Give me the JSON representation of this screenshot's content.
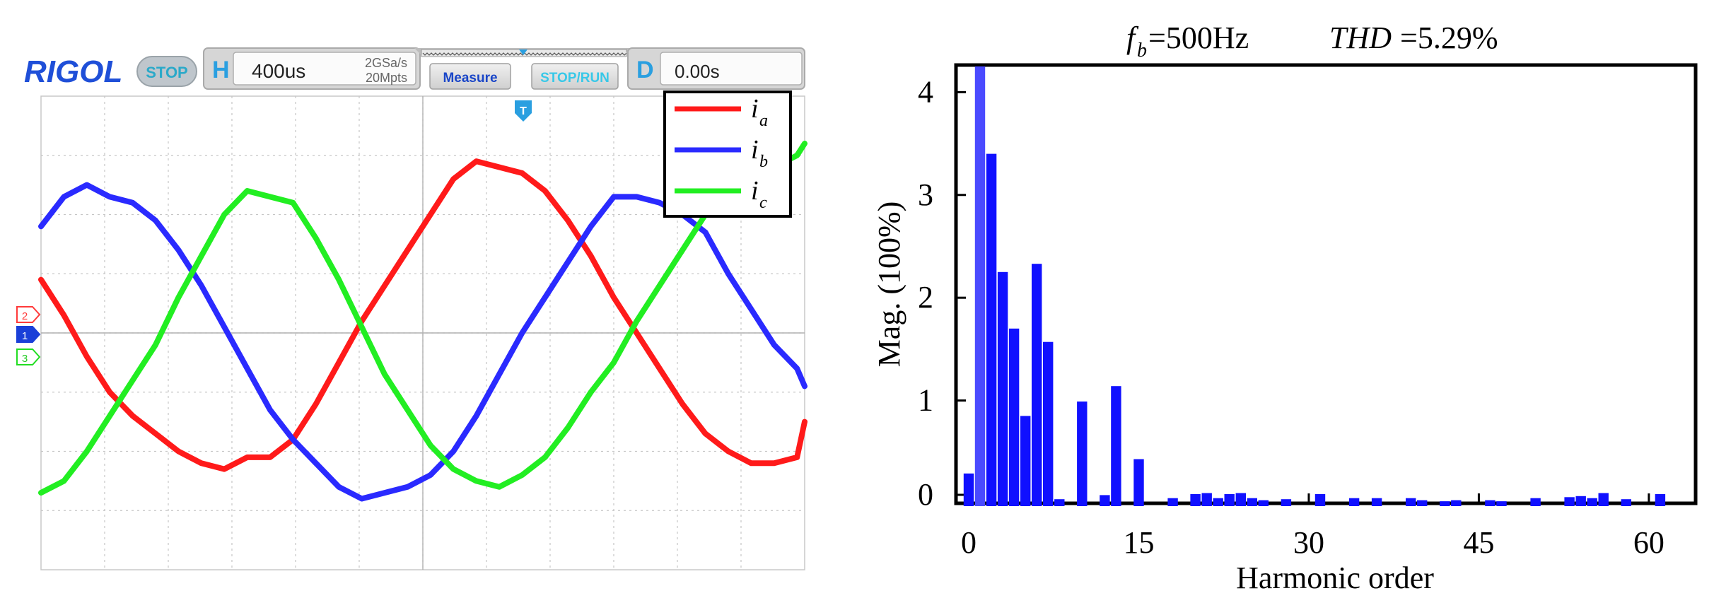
{
  "colors": {
    "ia": "#ff1a1a",
    "ib": "#2a2aff",
    "ic": "#22ee22",
    "bar": "#1010ff",
    "bar_fundamental": "#4a4aff",
    "rigol_blue": "#1f4fd8",
    "panel": "#e1e1e1",
    "accent_cyan": "#38c8e8"
  },
  "scope": {
    "brand": "RIGOL",
    "status": "STOP",
    "h_label": "H",
    "timebase": "400us",
    "sample_rate": "2GSa/s",
    "memory_depth": "20Mpts",
    "measure_button": "Measure",
    "stoprun_button": "STOP/RUN",
    "d_label": "D",
    "delay": "0.00s",
    "trigger_marker": "T",
    "channel_markers": [
      "2",
      "1",
      "3"
    ],
    "legend": [
      {
        "symbol": "i",
        "sub": "a",
        "color_key": "ia"
      },
      {
        "symbol": "i",
        "sub": "b",
        "color_key": "ib"
      },
      {
        "symbol": "i",
        "sub": "c",
        "color_key": "ic"
      }
    ]
  },
  "chart_data": [
    {
      "type": "line",
      "title": "",
      "xlabel": "",
      "ylabel": "",
      "xlim": [
        0,
        10
      ],
      "ylim": [
        -4,
        4
      ],
      "grid": true,
      "legend_position": "top-right",
      "series": [
        {
          "name": "i_a",
          "color_key": "ia",
          "x": [
            0.0,
            0.3,
            0.6,
            0.9,
            1.2,
            1.5,
            1.8,
            2.1,
            2.4,
            2.7,
            3.0,
            3.3,
            3.6,
            3.9,
            4.2,
            4.5,
            4.8,
            5.1,
            5.4,
            5.7,
            6.0,
            6.3,
            6.6,
            6.9,
            7.2,
            7.5,
            7.8,
            8.1,
            8.4,
            8.7,
            9.0,
            9.3,
            9.6,
            9.9,
            10.0
          ],
          "y": [
            0.9,
            0.3,
            -0.4,
            -1.0,
            -1.4,
            -1.7,
            -2.0,
            -2.2,
            -2.3,
            -2.1,
            -2.1,
            -1.8,
            -1.2,
            -0.5,
            0.2,
            0.8,
            1.4,
            2.0,
            2.6,
            2.9,
            2.8,
            2.7,
            2.4,
            1.9,
            1.3,
            0.6,
            0.0,
            -0.6,
            -1.2,
            -1.7,
            -2.0,
            -2.2,
            -2.2,
            -2.1,
            -1.5
          ]
        },
        {
          "name": "i_b",
          "color_key": "ib",
          "x": [
            0.0,
            0.3,
            0.6,
            0.9,
            1.2,
            1.5,
            1.8,
            2.1,
            2.4,
            2.7,
            3.0,
            3.3,
            3.6,
            3.9,
            4.2,
            4.5,
            4.8,
            5.1,
            5.4,
            5.7,
            6.0,
            6.3,
            6.6,
            6.9,
            7.2,
            7.5,
            7.8,
            8.1,
            8.4,
            8.7,
            9.0,
            9.3,
            9.6,
            9.9,
            10.0
          ],
          "y": [
            1.8,
            2.3,
            2.5,
            2.3,
            2.2,
            1.9,
            1.4,
            0.8,
            0.1,
            -0.6,
            -1.3,
            -1.8,
            -2.2,
            -2.6,
            -2.8,
            -2.7,
            -2.6,
            -2.4,
            -2.0,
            -1.4,
            -0.7,
            0.0,
            0.6,
            1.2,
            1.8,
            2.3,
            2.3,
            2.2,
            2.0,
            1.7,
            1.0,
            0.4,
            -0.2,
            -0.6,
            -0.9
          ]
        },
        {
          "name": "i_c",
          "color_key": "ic",
          "x": [
            0.0,
            0.3,
            0.6,
            0.9,
            1.2,
            1.5,
            1.8,
            2.1,
            2.4,
            2.7,
            3.0,
            3.3,
            3.6,
            3.9,
            4.2,
            4.5,
            4.8,
            5.1,
            5.4,
            5.7,
            6.0,
            6.3,
            6.6,
            6.9,
            7.2,
            7.5,
            7.8,
            8.1,
            8.4,
            8.7,
            9.0,
            9.3,
            9.6,
            9.9,
            10.0
          ],
          "y": [
            -2.7,
            -2.5,
            -2.0,
            -1.4,
            -0.8,
            -0.2,
            0.6,
            1.3,
            2.0,
            2.4,
            2.3,
            2.2,
            1.6,
            0.9,
            0.1,
            -0.7,
            -1.3,
            -1.9,
            -2.3,
            -2.5,
            -2.6,
            -2.4,
            -2.1,
            -1.6,
            -1.0,
            -0.5,
            0.2,
            0.8,
            1.4,
            2.0,
            2.4,
            2.6,
            2.8,
            3.0,
            3.2
          ]
        }
      ]
    },
    {
      "type": "bar",
      "title_parts": {
        "f": "f",
        "f_sub": "b",
        "f_value": "=500Hz",
        "thd": "THD",
        "thd_value": "=5.29%"
      },
      "title": "f_b=500Hz THD=5.29%",
      "xlabel": "Harmonic order",
      "ylabel": "Mag. (100%)",
      "xlim": [
        -1,
        64
      ],
      "ylim": [
        0,
        4.25
      ],
      "xticks": [
        0,
        15,
        30,
        45,
        60
      ],
      "xtick_labels": [
        "0",
        "15",
        "30",
        "45",
        "60"
      ],
      "yticks": [
        0,
        1,
        2,
        3,
        4
      ],
      "ytick_labels": [
        "0",
        "1",
        "2",
        "3",
        "4"
      ],
      "grid": false,
      "x": [
        0,
        1,
        2,
        3,
        4,
        5,
        6,
        7,
        8,
        10,
        12,
        13,
        15,
        18,
        20,
        21,
        22,
        23,
        24,
        25,
        26,
        28,
        31,
        34,
        36,
        39,
        40,
        42,
        43,
        46,
        47,
        50,
        53,
        54,
        55,
        56,
        58,
        61
      ],
      "values": [
        0.29,
        4.25,
        3.4,
        2.25,
        1.7,
        0.85,
        2.33,
        1.57,
        0.04,
        0.99,
        0.08,
        1.14,
        0.43,
        0.05,
        0.09,
        0.1,
        0.05,
        0.09,
        0.1,
        0.05,
        0.03,
        0.04,
        0.09,
        0.05,
        0.05,
        0.05,
        0.03,
        0.02,
        0.03,
        0.03,
        0.02,
        0.05,
        0.06,
        0.07,
        0.05,
        0.1,
        0.04,
        0.09
      ]
    }
  ]
}
